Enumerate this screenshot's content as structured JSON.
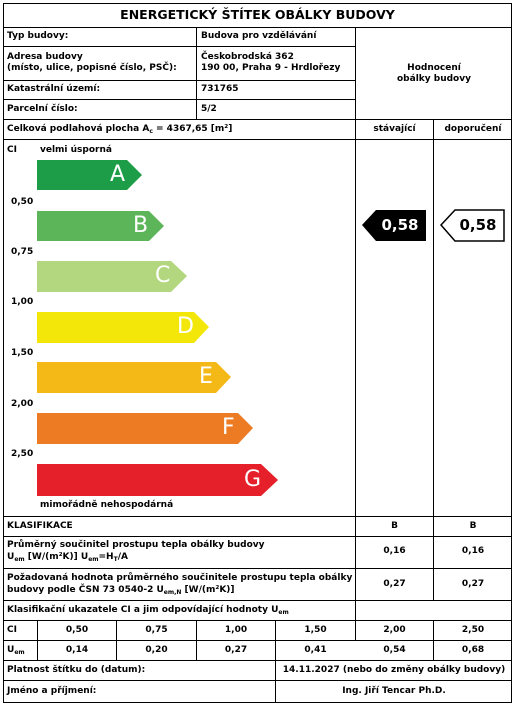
{
  "title": "ENERGETICKÝ ŠTÍTEK OBÁLKY BUDOVY",
  "building": {
    "type_label": "Typ budovy:",
    "type_value": "Budova pro vzdělávání",
    "address_label_1": "Adresa budovy",
    "address_label_2": "(místo, ulice, popisné číslo, PSČ):",
    "address_value_1": "Českobrodská 362",
    "address_value_2": "190 00, Praha 9 - Hrdlořezy",
    "cadastre_label": "Katastrální území:",
    "cadastre_value": "731765",
    "parcel_label": "Parcelní číslo:",
    "parcel_value": "5/2",
    "rating_header_1": "Hodnocení",
    "rating_header_2": "obálky budovy"
  },
  "area": {
    "label_pre": "Celková podlahová plocha A",
    "label_sub": "c",
    "label_post": " = 4367,65 [m²]",
    "col_current": "stávající",
    "col_recommended": "doporučení"
  },
  "scale": {
    "ci_label": "CI",
    "best_label": "velmi úsporná",
    "worst_label": "mimořádně nehospodárná",
    "thresholds": [
      "0,50",
      "0,75",
      "1,00",
      "1,50",
      "2,00",
      "2,50"
    ],
    "classes": [
      {
        "letter": "A",
        "color": "#1e9d48"
      },
      {
        "letter": "B",
        "color": "#5db55a"
      },
      {
        "letter": "C",
        "color": "#b3d77e"
      },
      {
        "letter": "D",
        "color": "#f3e70a"
      },
      {
        "letter": "E",
        "color": "#f4b817"
      },
      {
        "letter": "F",
        "color": "#ed7b23"
      },
      {
        "letter": "G",
        "color": "#e5202a"
      }
    ],
    "current_value": "0,58",
    "recommended_value": "0,58"
  },
  "classification": {
    "heading": "KLASIFIKACE",
    "current_class": "B",
    "recommended_class": "B",
    "row1_line1": "Průměrný součinitel prostupu tepla obálky budovy",
    "row1_line2_a": "U",
    "row1_line2_sub1": "em",
    "row1_line2_b": " [W/(m²K)] U",
    "row1_line2_sub2": "em",
    "row1_line2_c": "=H",
    "row1_line2_sub3": "T",
    "row1_line2_d": "/A",
    "row1_current": "0,16",
    "row1_recommended": "0,16",
    "row2_line1": "Požadovaná hodnota průměrného součinitele prostupu tepla obálky",
    "row2_line2_a": "budovy podle ČSN 73 0540-2 U",
    "row2_line2_sub": "em,N",
    "row2_line2_b": " [W/(m²K)]",
    "row2_current": "0,27",
    "row2_recommended": "0,27",
    "indicators_heading_a": "Klasifikační ukazatele CI a jim odpovídající hodnoty U",
    "indicators_heading_sub": "em",
    "ci_row_label": "CI",
    "ci_values": [
      "0,50",
      "0,75",
      "1,00",
      "1,50",
      "2,00",
      "2,50"
    ],
    "uem_row_label": "U",
    "uem_row_sub": "em",
    "uem_values": [
      "0,14",
      "0,20",
      "0,27",
      "0,41",
      "0,54",
      "0,68"
    ]
  },
  "validity": {
    "label": "Platnost štítku do (datum):",
    "value": "14.11.2027 (nebo do změny obálky budovy)"
  },
  "author": {
    "label": "Jméno a příjmení:",
    "value": "Ing. Jiří Tencar Ph.D."
  }
}
